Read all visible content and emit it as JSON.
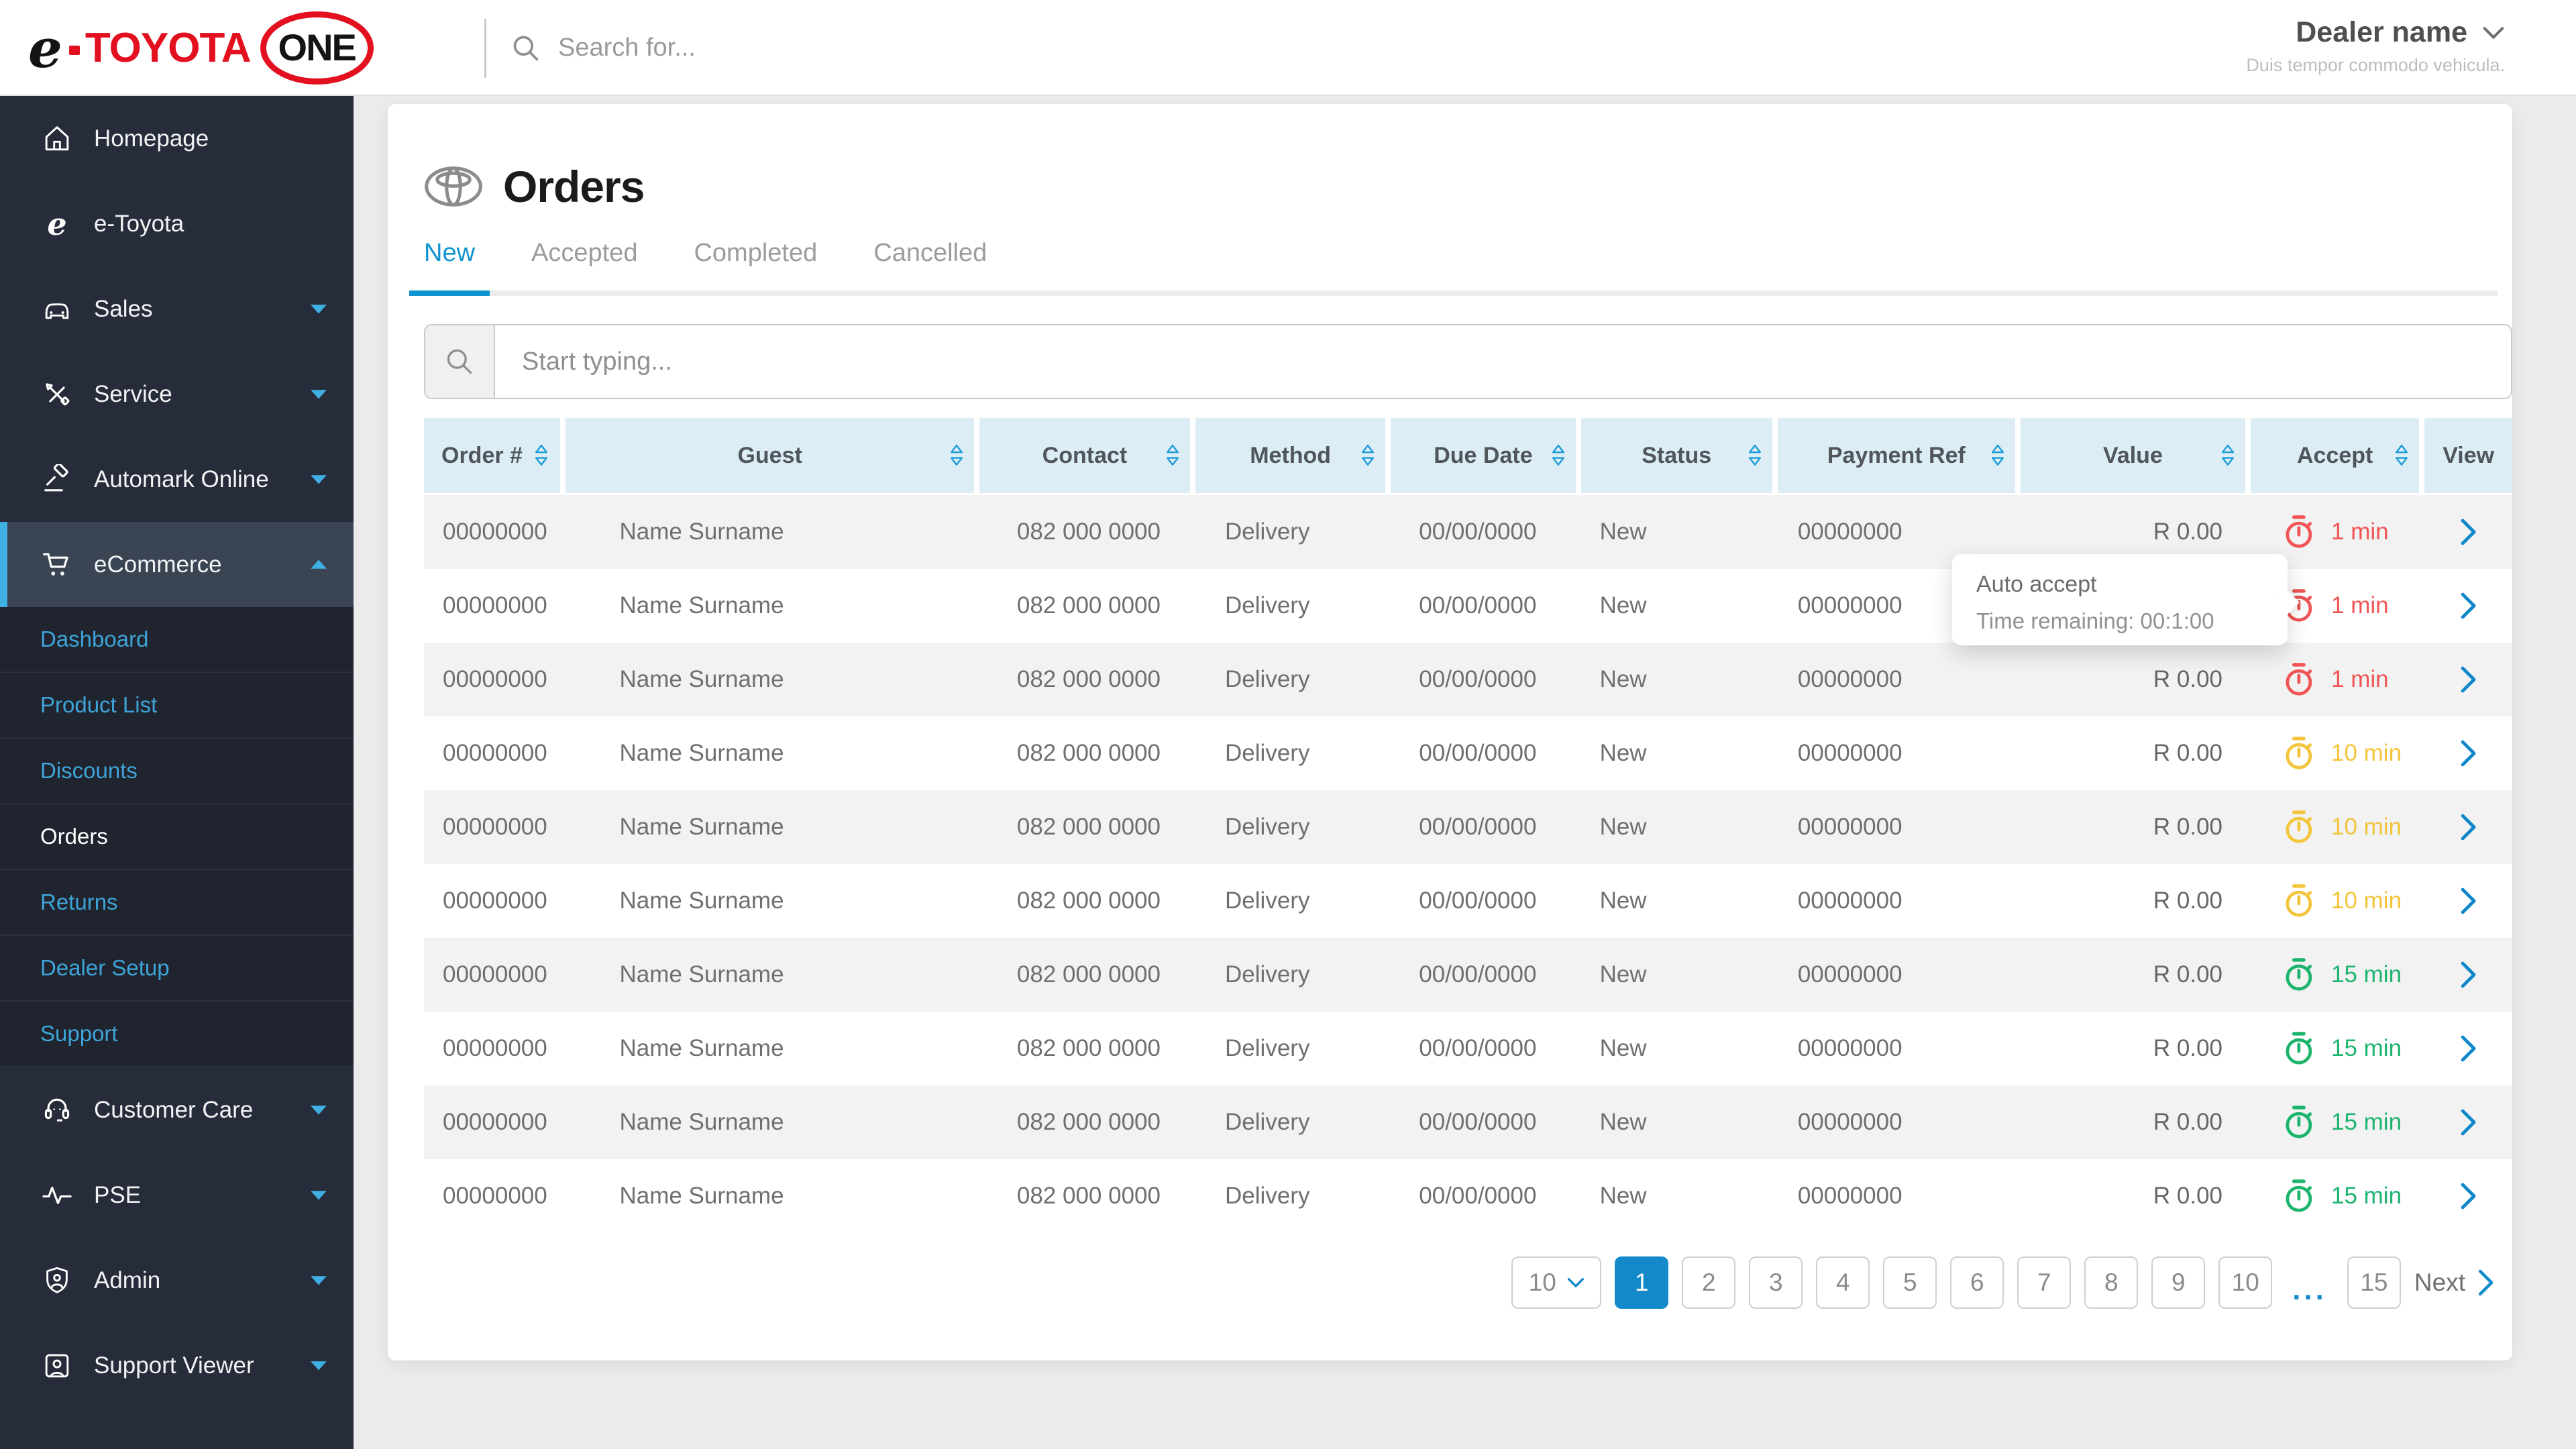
{
  "topbar": {
    "logo": {
      "e": "e",
      "toyota": "TOYOTA",
      "one": "ONE"
    },
    "search_placeholder": "Search for...",
    "dealer": {
      "name": "Dealer name",
      "subtitle": "Duis tempor commodo vehicula.",
      "chevron_icon": "chevron-down-icon"
    }
  },
  "sidebar": {
    "items": [
      {
        "label": "Homepage",
        "icon": "home-icon",
        "expandable": false
      },
      {
        "label": "e-Toyota",
        "icon": "e-toyota-icon",
        "expandable": false
      },
      {
        "label": "Sales",
        "icon": "car-icon",
        "expandable": true
      },
      {
        "label": "Service",
        "icon": "tools-icon",
        "expandable": true
      },
      {
        "label": "Automark Online",
        "icon": "gavel-icon",
        "expandable": true
      },
      {
        "label": "eCommerce",
        "icon": "cart-icon",
        "expandable": true,
        "expanded": true,
        "active": true
      }
    ],
    "submenu": [
      {
        "label": "Dashboard"
      },
      {
        "label": "Product List"
      },
      {
        "label": "Discounts"
      },
      {
        "label": "Orders",
        "active": true
      },
      {
        "label": "Returns"
      },
      {
        "label": "Dealer Setup"
      },
      {
        "label": "Support"
      }
    ],
    "items_bottom": [
      {
        "label": "Customer Care",
        "icon": "headset-icon",
        "expandable": true
      },
      {
        "label": "PSE",
        "icon": "pulse-icon",
        "expandable": true
      },
      {
        "label": "Admin",
        "icon": "shield-user-icon",
        "expandable": true
      },
      {
        "label": "Support Viewer",
        "icon": "user-card-icon",
        "expandable": true
      }
    ]
  },
  "page": {
    "title": "Orders",
    "title_icon": "toyota-logo-icon",
    "tabs": [
      {
        "label": "New",
        "active": true
      },
      {
        "label": "Accepted"
      },
      {
        "label": "Completed"
      },
      {
        "label": "Cancelled"
      }
    ],
    "filter_placeholder": "Start typing..."
  },
  "table": {
    "columns": [
      {
        "label": "Order #",
        "sortable": true
      },
      {
        "label": "Guest",
        "sortable": true
      },
      {
        "label": "Contact",
        "sortable": true
      },
      {
        "label": "Method",
        "sortable": true
      },
      {
        "label": "Due Date",
        "sortable": true
      },
      {
        "label": "Status",
        "sortable": true
      },
      {
        "label": "Payment Ref",
        "sortable": true
      },
      {
        "label": "Value",
        "sortable": true
      },
      {
        "label": "Accept",
        "sortable": true
      },
      {
        "label": "View",
        "sortable": false
      }
    ],
    "rows": [
      {
        "order": "00000000",
        "guest": "Name Surname",
        "contact": "082 000 0000",
        "method": "Delivery",
        "due_date": "00/00/0000",
        "status": "New",
        "payment_ref": "00000000",
        "value": "R 0.00",
        "accept": "1 min",
        "accept_state": "red"
      },
      {
        "order": "00000000",
        "guest": "Name Surname",
        "contact": "082 000 0000",
        "method": "Delivery",
        "due_date": "00/00/0000",
        "status": "New",
        "payment_ref": "00000000",
        "value": "R 0.00",
        "accept": "1 min",
        "accept_state": "red"
      },
      {
        "order": "00000000",
        "guest": "Name Surname",
        "contact": "082 000 0000",
        "method": "Delivery",
        "due_date": "00/00/0000",
        "status": "New",
        "payment_ref": "00000000",
        "value": "R 0.00",
        "accept": "1 min",
        "accept_state": "red"
      },
      {
        "order": "00000000",
        "guest": "Name Surname",
        "contact": "082 000 0000",
        "method": "Delivery",
        "due_date": "00/00/0000",
        "status": "New",
        "payment_ref": "00000000",
        "value": "R 0.00",
        "accept": "10 min",
        "accept_state": "yellow"
      },
      {
        "order": "00000000",
        "guest": "Name Surname",
        "contact": "082 000 0000",
        "method": "Delivery",
        "due_date": "00/00/0000",
        "status": "New",
        "payment_ref": "00000000",
        "value": "R 0.00",
        "accept": "10 min",
        "accept_state": "yellow"
      },
      {
        "order": "00000000",
        "guest": "Name Surname",
        "contact": "082 000 0000",
        "method": "Delivery",
        "due_date": "00/00/0000",
        "status": "New",
        "payment_ref": "00000000",
        "value": "R 0.00",
        "accept": "10 min",
        "accept_state": "yellow"
      },
      {
        "order": "00000000",
        "guest": "Name Surname",
        "contact": "082 000 0000",
        "method": "Delivery",
        "due_date": "00/00/0000",
        "status": "New",
        "payment_ref": "00000000",
        "value": "R 0.00",
        "accept": "15 min",
        "accept_state": "green"
      },
      {
        "order": "00000000",
        "guest": "Name Surname",
        "contact": "082 000 0000",
        "method": "Delivery",
        "due_date": "00/00/0000",
        "status": "New",
        "payment_ref": "00000000",
        "value": "R 0.00",
        "accept": "15 min",
        "accept_state": "green"
      },
      {
        "order": "00000000",
        "guest": "Name Surname",
        "contact": "082 000 0000",
        "method": "Delivery",
        "due_date": "00/00/0000",
        "status": "New",
        "payment_ref": "00000000",
        "value": "R 0.00",
        "accept": "15 min",
        "accept_state": "green"
      },
      {
        "order": "00000000",
        "guest": "Name Surname",
        "contact": "082 000 0000",
        "method": "Delivery",
        "due_date": "00/00/0000",
        "status": "New",
        "payment_ref": "00000000",
        "value": "R 0.00",
        "accept": "15 min",
        "accept_state": "green"
      }
    ],
    "accept_icon": "timer-icon",
    "view_icon": "chevron-right-icon"
  },
  "tooltip": {
    "title": "Auto accept",
    "body": "Time remaining: 00:1:00"
  },
  "pagination": {
    "page_size": "10",
    "pages": [
      "1",
      "2",
      "3",
      "4",
      "5",
      "6",
      "7",
      "8",
      "9",
      "10"
    ],
    "active_page": "1",
    "ellipsis": "...",
    "last_page": "15",
    "next_label": "Next"
  },
  "colors": {
    "accent_blue": "#1094cf",
    "sidebar_link_blue": "#3ea4d8",
    "header_cell_bg": "#ddedf5",
    "timer_red": "#f05454",
    "timer_yellow": "#f3c53d",
    "timer_green": "#1db46e",
    "active_page_bg": "#1389ca",
    "brand_red": "#e3101f"
  }
}
